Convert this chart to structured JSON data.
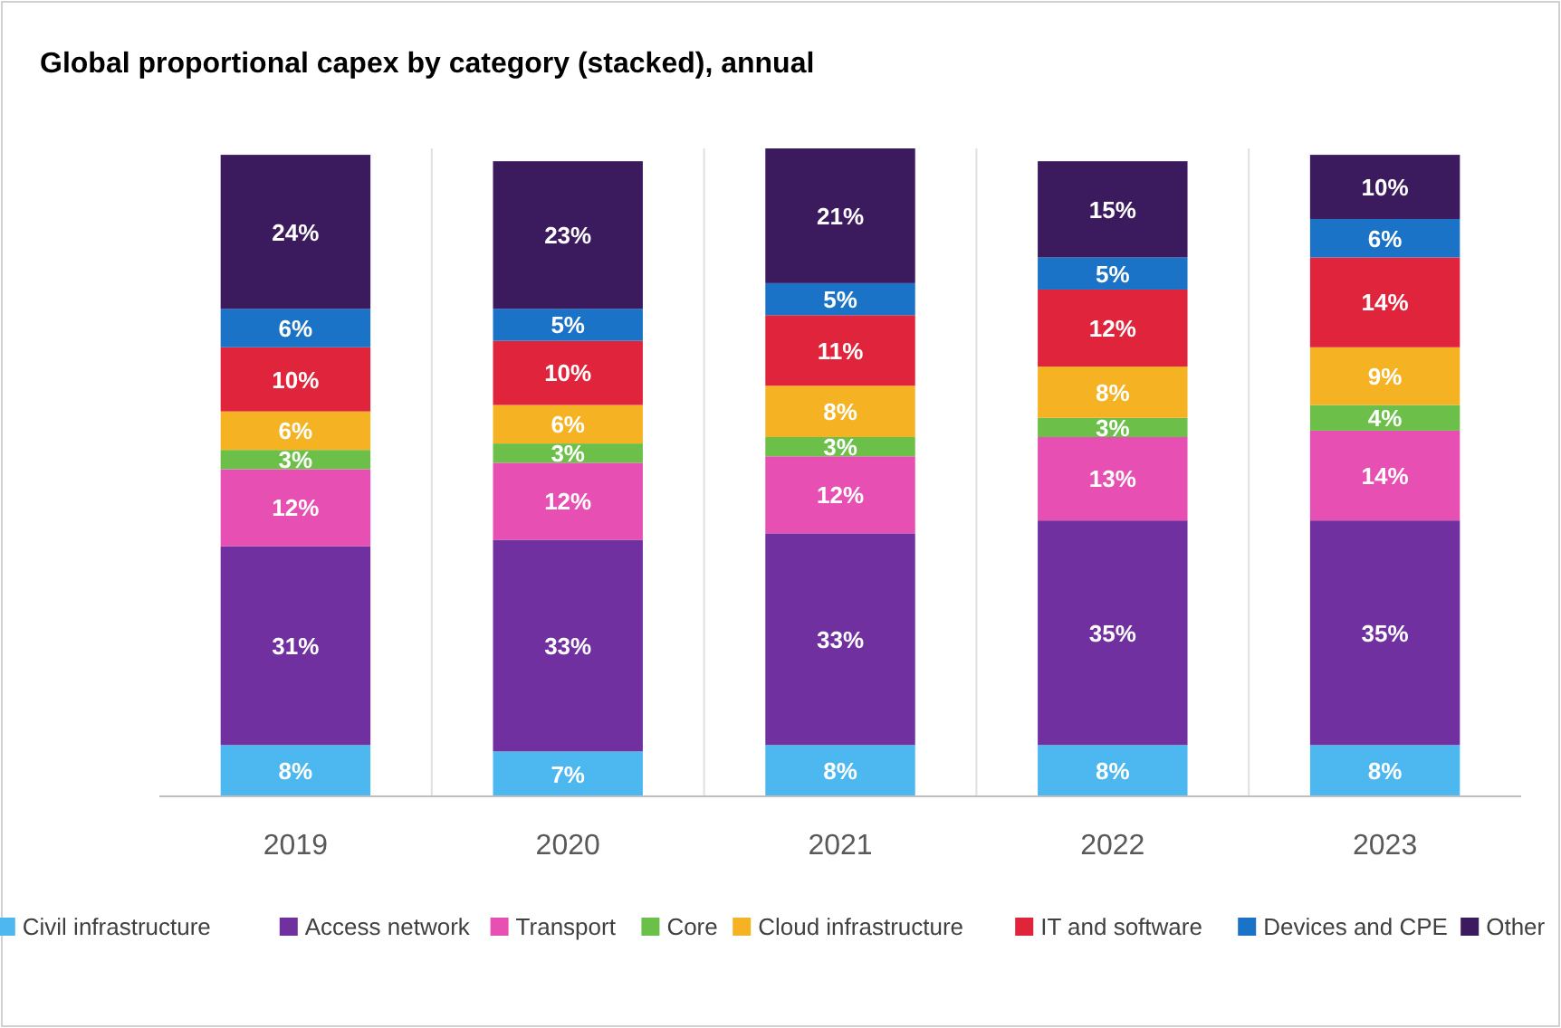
{
  "chart_data": {
    "type": "bar",
    "title": "Global proportional capex by category (stacked), annual",
    "categories": [
      "2019",
      "2020",
      "2021",
      "2022",
      "2023"
    ],
    "stacked": true,
    "legend": "bottom",
    "series": [
      {
        "name": "Civil infrastructure",
        "color": "#4db8f0",
        "values": [
          8,
          7,
          8,
          8,
          8
        ],
        "value_labels": [
          "8%",
          "7%",
          "8%",
          "8%",
          "8%"
        ]
      },
      {
        "name": "Access network",
        "color": "#7030a0",
        "values": [
          31,
          33,
          33,
          35,
          35
        ],
        "value_labels": [
          "31%",
          "33%",
          "33%",
          "35%",
          "35%"
        ]
      },
      {
        "name": "Transport",
        "color": "#e84fb3",
        "values": [
          12,
          12,
          12,
          13,
          14
        ],
        "value_labels": [
          "12%",
          "12%",
          "12%",
          "13%",
          "14%"
        ]
      },
      {
        "name": "Core",
        "color": "#6cc04a",
        "values": [
          3,
          3,
          3,
          3,
          4
        ],
        "value_labels": [
          "3%",
          "3%",
          "3%",
          "3%",
          "4%"
        ]
      },
      {
        "name": "Cloud infrastructure",
        "color": "#f5b324",
        "values": [
          6,
          6,
          8,
          8,
          9
        ],
        "value_labels": [
          "6%",
          "6%",
          "8%",
          "8%",
          "9%"
        ]
      },
      {
        "name": "IT and software",
        "color": "#e0243c",
        "values": [
          10,
          10,
          11,
          12,
          14
        ],
        "value_labels": [
          "10%",
          "10%",
          "11%",
          "12%",
          "14%"
        ]
      },
      {
        "name": "Devices and CPE",
        "color": "#1a73c6",
        "values": [
          6,
          5,
          5,
          5,
          6
        ],
        "value_labels": [
          "6%",
          "5%",
          "5%",
          "5%",
          "6%"
        ]
      },
      {
        "name": "Other",
        "color": "#3b1a5e",
        "values": [
          24,
          23,
          21,
          15,
          10
        ],
        "value_labels": [
          "24%",
          "23%",
          "21%",
          "15%",
          "10%"
        ]
      }
    ]
  }
}
